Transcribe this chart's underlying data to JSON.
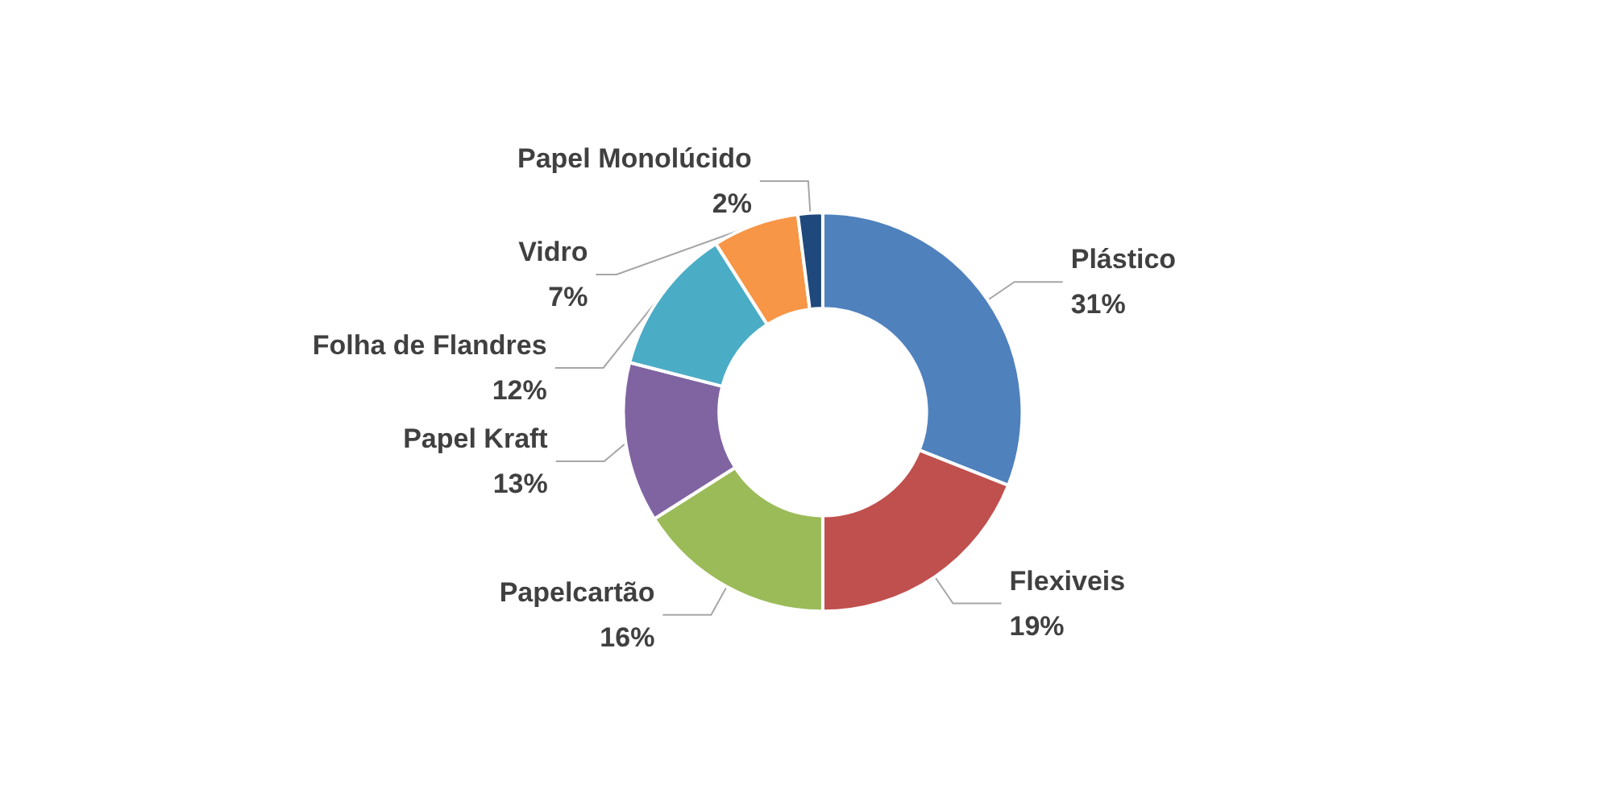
{
  "chart_data": {
    "type": "donut",
    "categories": [
      "Plástico",
      "Flexiveis",
      "Papelcartão",
      "Papel Kraft",
      "Folha de Flandres",
      "Vidro",
      "Papel Monolúcido"
    ],
    "values": [
      31,
      19,
      16,
      13,
      12,
      7,
      2
    ],
    "value_labels": [
      "31%",
      "19%",
      "16%",
      "13%",
      "12%",
      "7%",
      "2%"
    ],
    "colors": [
      "#4f81bd",
      "#c0504d",
      "#9bbb59",
      "#8064a2",
      "#4bacc6",
      "#f79646",
      "#1f497d"
    ],
    "legend": false
  }
}
